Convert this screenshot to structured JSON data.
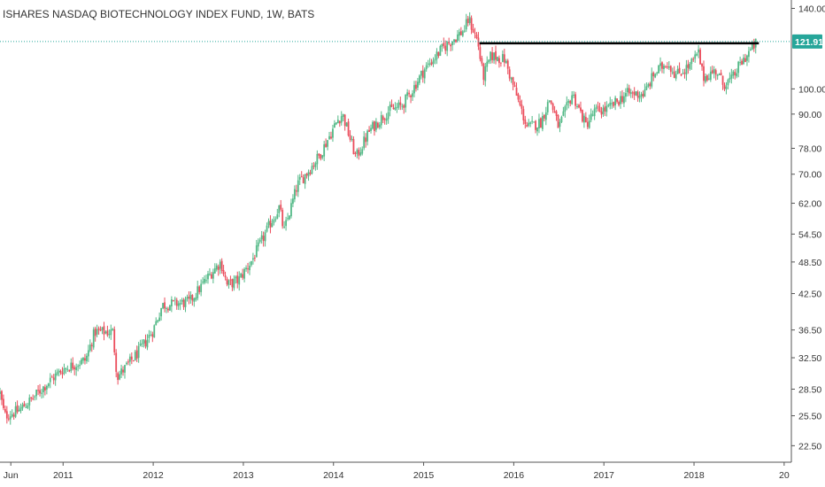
{
  "chart_data": {
    "type": "candlestick",
    "title": "ISHARES NASDAQ BIOTECHNOLOGY INDEX FUND, 1W, BATS",
    "scale": "log",
    "ylim": [
      21.0,
      145.0
    ],
    "y_ticks": [
      {
        "value": 140,
        "label": "140.00"
      },
      {
        "value": 100,
        "label": "100.00"
      },
      {
        "value": 90,
        "label": "90.00"
      },
      {
        "value": 78,
        "label": "78.00"
      },
      {
        "value": 70,
        "label": "70.00"
      },
      {
        "value": 62,
        "label": "62.00"
      },
      {
        "value": 54.5,
        "label": "54.50"
      },
      {
        "value": 48.5,
        "label": "48.50"
      },
      {
        "value": 42.5,
        "label": "42.50"
      },
      {
        "value": 36.5,
        "label": "36.50"
      },
      {
        "value": 32.5,
        "label": "32.50"
      },
      {
        "value": 28.5,
        "label": "28.50"
      },
      {
        "value": 25.5,
        "label": "25.50"
      },
      {
        "value": 22.5,
        "label": "22.50"
      }
    ],
    "x_ticks": [
      "Jun",
      "2011",
      "2012",
      "2013",
      "2014",
      "2015",
      "2016",
      "2017",
      "2018",
      "20"
    ],
    "x_tick_positions": [
      2010.42,
      2011.0,
      2012.0,
      2013.0,
      2014.0,
      2015.0,
      2016.0,
      2017.0,
      2018.0,
      2019.0
    ],
    "xlim": [
      2010.3,
      2019.08
    ],
    "last_price": 121.91,
    "last_price_label": "121.91",
    "resistance_level": 121.0,
    "resistance_range": [
      2015.62,
      2018.72
    ],
    "colors": {
      "up": "#53b987",
      "down": "#eb4d5c",
      "resistance": "#000000",
      "price_line": "#26a69a",
      "axis": "#333333"
    },
    "path_anchors": [
      [
        2010.3,
        28.0
      ],
      [
        2010.35,
        25.5
      ],
      [
        2010.5,
        26.0
      ],
      [
        2010.65,
        27.3
      ],
      [
        2010.85,
        29.5
      ],
      [
        2011.0,
        31.0
      ],
      [
        2011.25,
        32.2
      ],
      [
        2011.35,
        36.2
      ],
      [
        2011.55,
        36.2
      ],
      [
        2011.6,
        30.0
      ],
      [
        2011.7,
        31.3
      ],
      [
        2011.85,
        33.5
      ],
      [
        2012.0,
        36.5
      ],
      [
        2012.1,
        40.5
      ],
      [
        2012.4,
        41.0
      ],
      [
        2012.65,
        46.5
      ],
      [
        2012.75,
        48.5
      ],
      [
        2012.82,
        44.0
      ],
      [
        2012.95,
        45.0
      ],
      [
        2013.1,
        49.0
      ],
      [
        2013.3,
        57.0
      ],
      [
        2013.4,
        61.0
      ],
      [
        2013.45,
        55.0
      ],
      [
        2013.6,
        67.0
      ],
      [
        2013.75,
        72.0
      ],
      [
        2013.85,
        76.0
      ],
      [
        2014.05,
        88.0
      ],
      [
        2014.1,
        90.0
      ],
      [
        2014.25,
        75.0
      ],
      [
        2014.4,
        84.0
      ],
      [
        2014.6,
        91.0
      ],
      [
        2014.75,
        93.0
      ],
      [
        2014.85,
        98.0
      ],
      [
        2015.0,
        108.0
      ],
      [
        2015.2,
        118.0
      ],
      [
        2015.45,
        128.0
      ],
      [
        2015.5,
        134.0
      ],
      [
        2015.6,
        122.0
      ],
      [
        2015.66,
        105.0
      ],
      [
        2015.75,
        115.0
      ],
      [
        2015.9,
        113.0
      ],
      [
        2016.05,
        95.0
      ],
      [
        2016.15,
        85.0
      ],
      [
        2016.3,
        87.0
      ],
      [
        2016.4,
        96.0
      ],
      [
        2016.5,
        85.0
      ],
      [
        2016.65,
        98.0
      ],
      [
        2016.8,
        86.0
      ],
      [
        2016.9,
        91.0
      ],
      [
        2017.05,
        92.0
      ],
      [
        2017.25,
        98.0
      ],
      [
        2017.45,
        98.0
      ],
      [
        2017.55,
        106.0
      ],
      [
        2017.7,
        112.0
      ],
      [
        2017.8,
        106.0
      ],
      [
        2017.95,
        110.0
      ],
      [
        2018.05,
        116.0
      ],
      [
        2018.1,
        105.0
      ],
      [
        2018.25,
        108.0
      ],
      [
        2018.32,
        102.0
      ],
      [
        2018.42,
        104.0
      ],
      [
        2018.5,
        110.0
      ],
      [
        2018.6,
        116.0
      ],
      [
        2018.7,
        121.91
      ]
    ]
  }
}
